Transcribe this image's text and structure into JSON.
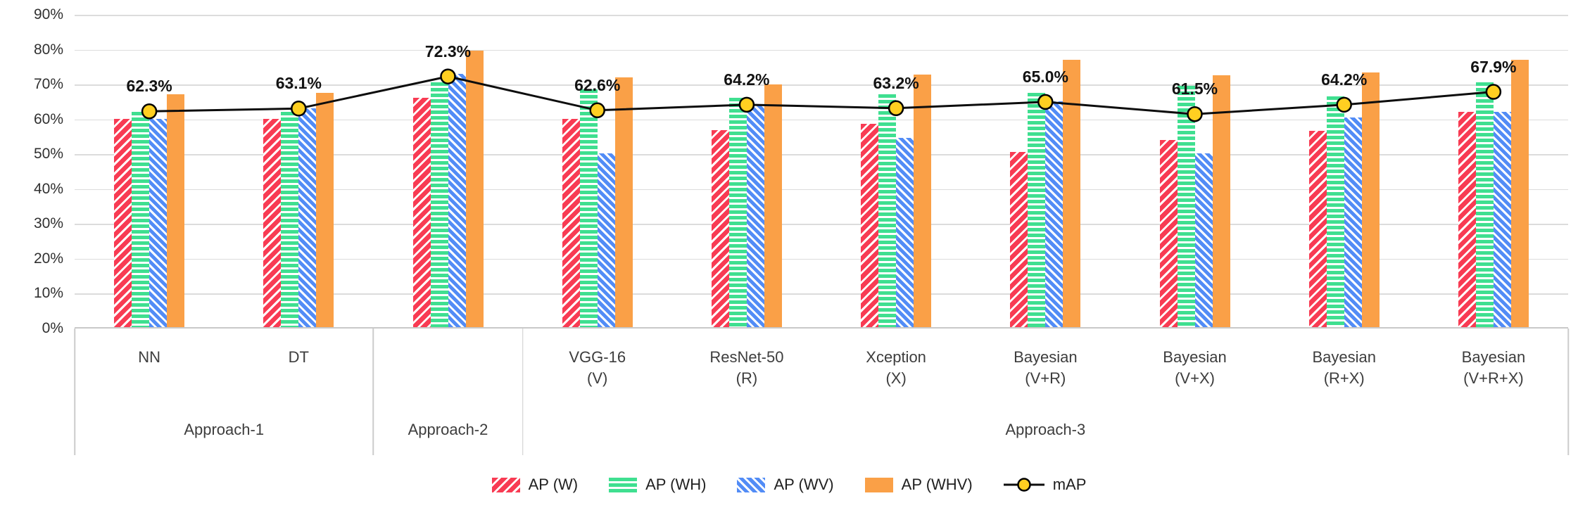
{
  "colors": {
    "ap_w": "#F83B53",
    "ap_wh": "#3FDF90",
    "ap_wv": "#528CF6",
    "ap_whv": "#FAA047",
    "map_line": "#0d0d0d",
    "map_marker": "#FFCF21",
    "grid": "#dcdcdc",
    "axis_line": "#c9c9c9",
    "axis_text": "#303030",
    "label_text": "#121212"
  },
  "chart_data": {
    "type": "bar",
    "title": "",
    "y_axis": {
      "min": 0,
      "max": 90,
      "step": 10,
      "ticks": [
        "0%",
        "10%",
        "20%",
        "30%",
        "40%",
        "50%",
        "60%",
        "70%",
        "80%",
        "90%"
      ]
    },
    "categories": [
      "NN",
      "DT",
      "",
      "VGG-16 (V)",
      "ResNet-50 (R)",
      "Xception (X)",
      "Bayesian (V+R)",
      "Bayesian (V+X)",
      "Bayesian (R+X)",
      "Bayesian (V+R+X)"
    ],
    "category_label_lines": [
      [
        "NN"
      ],
      [
        "DT"
      ],
      [],
      [
        "VGG-16",
        "(V)"
      ],
      [
        "ResNet-50",
        "(R)"
      ],
      [
        "Xception",
        "(X)"
      ],
      [
        "Bayesian",
        "(V+R)"
      ],
      [
        "Bayesian",
        "(V+X)"
      ],
      [
        "Bayesian",
        "(R+X)"
      ],
      [
        "Bayesian",
        "(V+R+X)"
      ]
    ],
    "group_axis": [
      {
        "label": "Approach-1",
        "span": 2
      },
      {
        "label": "Approach-2",
        "span": 1
      },
      {
        "label": "Approach-3",
        "span": 7
      }
    ],
    "series": [
      {
        "name": "AP (W)",
        "key": "ap_w",
        "pattern": "diag-up",
        "values": [
          60,
          60,
          66,
          60,
          56.8,
          58.5,
          50.5,
          54,
          56.5,
          62
        ]
      },
      {
        "name": "AP (WH)",
        "key": "ap_wh",
        "pattern": "horizontal",
        "values": [
          62,
          62,
          70.5,
          68.5,
          66,
          67,
          67.5,
          69.5,
          66.5,
          70.5
        ]
      },
      {
        "name": "AP (WV)",
        "key": "ap_wv",
        "pattern": "diag-down",
        "values": [
          60,
          63,
          73,
          50,
          64,
          54.5,
          65,
          50,
          60.5,
          62
        ]
      },
      {
        "name": "AP (WHV)",
        "key": "ap_whv",
        "pattern": "solid",
        "values": [
          67,
          67.5,
          79.7,
          72,
          70,
          72.8,
          77,
          72.5,
          73.3,
          77
        ]
      }
    ],
    "line_series": {
      "name": "mAP",
      "values": [
        62.3,
        63.1,
        72.3,
        62.6,
        64.2,
        63.2,
        65.0,
        61.5,
        64.2,
        67.9
      ],
      "labels": [
        "62.3%",
        "63.1%",
        "72.3%",
        "62.6%",
        "64.2%",
        "63.2%",
        "65.0%",
        "61.5%",
        "64.2%",
        "67.9%"
      ]
    },
    "legend": [
      {
        "label": "AP (W)",
        "swatch": "ap_w",
        "pattern": "diag-up",
        "type": "bar"
      },
      {
        "label": "AP (WH)",
        "swatch": "ap_wh",
        "pattern": "horizontal",
        "type": "bar"
      },
      {
        "label": "AP (WV)",
        "swatch": "ap_wv",
        "pattern": "diag-down",
        "type": "bar"
      },
      {
        "label": "AP (WHV)",
        "swatch": "ap_whv",
        "pattern": "solid",
        "type": "bar"
      },
      {
        "label": "mAP",
        "type": "line"
      }
    ]
  }
}
